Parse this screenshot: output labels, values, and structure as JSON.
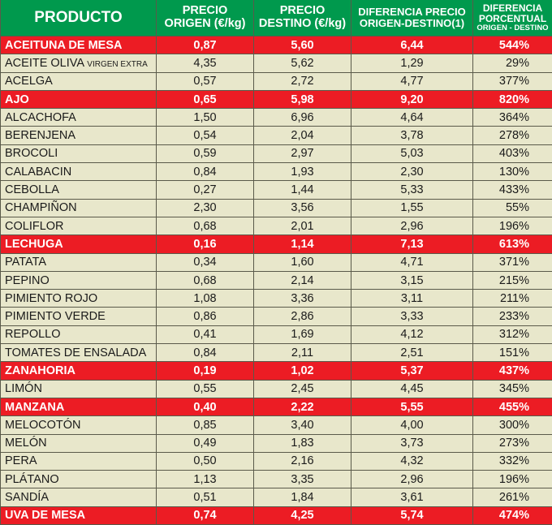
{
  "headers": {
    "producto": "PRODUCTO",
    "origen_1": "PRECIO",
    "origen_2": "ORIGEN (€/kg)",
    "destino_1": "PRECIO",
    "destino_2": "DESTINO (€/kg)",
    "dif_1": "DIFERENCIA PRECIO",
    "dif_2": "ORIGEN-DESTINO(1)",
    "pct_1": "DIFERENCIA",
    "pct_2": "PORCENTUAL",
    "pct_3": "ORIGEN - DESTINO"
  },
  "colors": {
    "header": "#00994d",
    "highlight": "#ec1c24",
    "row": "#e8e7cb"
  },
  "rows": [
    {
      "name": "ACEITUNA DE MESA",
      "origen": "0,87",
      "destino": "5,60",
      "dif": "6,44",
      "pct": "544%",
      "hl": true
    },
    {
      "name": "ACEITE OLIVA",
      "sub": "VIRGEN EXTRA",
      "origen": "4,35",
      "destino": "5,62",
      "dif": "1,29",
      "pct": "29%",
      "hl": false
    },
    {
      "name": "ACELGA",
      "origen": "0,57",
      "destino": "2,72",
      "dif": "4,77",
      "pct": "377%",
      "hl": false
    },
    {
      "name": "AJO",
      "origen": "0,65",
      "destino": "5,98",
      "dif": "9,20",
      "pct": "820%",
      "hl": true
    },
    {
      "name": "ALCACHOFA",
      "origen": "1,50",
      "destino": "6,96",
      "dif": "4,64",
      "pct": "364%",
      "hl": false
    },
    {
      "name": "BERENJENA",
      "origen": "0,54",
      "destino": "2,04",
      "dif": "3,78",
      "pct": "278%",
      "hl": false
    },
    {
      "name": "BROCOLI",
      "origen": "0,59",
      "destino": "2,97",
      "dif": "5,03",
      "pct": "403%",
      "hl": false
    },
    {
      "name": "CALABACIN",
      "origen": "0,84",
      "destino": "1,93",
      "dif": "2,30",
      "pct": "130%",
      "hl": false
    },
    {
      "name": "CEBOLLA",
      "origen": "0,27",
      "destino": "1,44",
      "dif": "5,33",
      "pct": "433%",
      "hl": false
    },
    {
      "name": "CHAMPIÑON",
      "origen": "2,30",
      "destino": "3,56",
      "dif": "1,55",
      "pct": "55%",
      "hl": false
    },
    {
      "name": "COLIFLOR",
      "origen": "0,68",
      "destino": "2,01",
      "dif": "2,96",
      "pct": "196%",
      "hl": false
    },
    {
      "name": "LECHUGA",
      "origen": "0,16",
      "destino": "1,14",
      "dif": "7,13",
      "pct": "613%",
      "hl": true
    },
    {
      "name": "PATATA",
      "origen": "0,34",
      "destino": "1,60",
      "dif": "4,71",
      "pct": "371%",
      "hl": false
    },
    {
      "name": "PEPINO",
      "origen": "0,68",
      "destino": "2,14",
      "dif": "3,15",
      "pct": "215%",
      "hl": false
    },
    {
      "name": "PIMIENTO ROJO",
      "origen": "1,08",
      "destino": "3,36",
      "dif": "3,11",
      "pct": "211%",
      "hl": false
    },
    {
      "name": "PIMIENTO VERDE",
      "origen": "0,86",
      "destino": "2,86",
      "dif": "3,33",
      "pct": "233%",
      "hl": false
    },
    {
      "name": "REPOLLO",
      "origen": "0,41",
      "destino": "1,69",
      "dif": "4,12",
      "pct": "312%",
      "hl": false
    },
    {
      "name": "TOMATES DE ENSALADA",
      "origen": "0,84",
      "destino": "2,11",
      "dif": "2,51",
      "pct": "151%",
      "hl": false
    },
    {
      "name": "ZANAHORIA",
      "origen": "0,19",
      "destino": "1,02",
      "dif": "5,37",
      "pct": "437%",
      "hl": true
    },
    {
      "name": "LIMÓN",
      "origen": "0,55",
      "destino": "2,45",
      "dif": "4,45",
      "pct": "345%",
      "hl": false
    },
    {
      "name": "MANZANA",
      "origen": "0,40",
      "destino": "2,22",
      "dif": "5,55",
      "pct": "455%",
      "hl": true
    },
    {
      "name": "MELOCOTÓN",
      "origen": "0,85",
      "destino": "3,40",
      "dif": "4,00",
      "pct": "300%",
      "hl": false
    },
    {
      "name": "MELÓN",
      "origen": "0,49",
      "destino": "1,83",
      "dif": "3,73",
      "pct": "273%",
      "hl": false
    },
    {
      "name": "PERA",
      "origen": "0,50",
      "destino": "2,16",
      "dif": "4,32",
      "pct": "332%",
      "hl": false
    },
    {
      "name": "PLÁTANO",
      "origen": "1,13",
      "destino": "3,35",
      "dif": "2,96",
      "pct": "196%",
      "hl": false
    },
    {
      "name": "SANDÍA",
      "origen": "0,51",
      "destino": "1,84",
      "dif": "3,61",
      "pct": "261%",
      "hl": false
    },
    {
      "name": "UVA DE MESA",
      "origen": "0,74",
      "destino": "4,25",
      "dif": "5,74",
      "pct": "474%",
      "hl": true
    }
  ]
}
